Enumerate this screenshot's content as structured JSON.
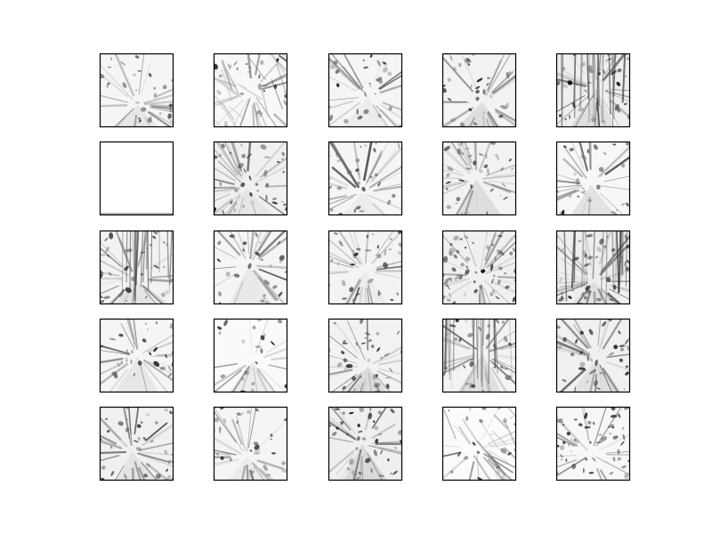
{
  "figure": {
    "kind": "feature-map-grid",
    "rows": 5,
    "columns": 5,
    "tile_count": 25,
    "colormap": "grayscale",
    "background": "#ffffff",
    "frame_color": "#000000",
    "blank_tiles": [
      5
    ],
    "tiles": [
      {
        "density": 0.35,
        "motif": "radial"
      },
      {
        "density": 0.25,
        "motif": "diagonal"
      },
      {
        "density": 0.35,
        "motif": "radial"
      },
      {
        "density": 0.45,
        "motif": "radial"
      },
      {
        "density": 0.6,
        "motif": "corridor"
      },
      {
        "density": 0.0,
        "motif": "blank"
      },
      {
        "density": 0.55,
        "motif": "radial"
      },
      {
        "density": 0.35,
        "motif": "radial"
      },
      {
        "density": 0.5,
        "motif": "radial"
      },
      {
        "density": 0.3,
        "motif": "radial"
      },
      {
        "density": 0.5,
        "motif": "corridor"
      },
      {
        "density": 0.35,
        "motif": "radial"
      },
      {
        "density": 0.45,
        "motif": "radial"
      },
      {
        "density": 0.55,
        "motif": "scattered"
      },
      {
        "density": 0.65,
        "motif": "corridor"
      },
      {
        "density": 0.35,
        "motif": "radial"
      },
      {
        "density": 0.2,
        "motif": "radial"
      },
      {
        "density": 0.5,
        "motif": "radial"
      },
      {
        "density": 0.45,
        "motif": "corridor"
      },
      {
        "density": 0.55,
        "motif": "radial"
      },
      {
        "density": 0.55,
        "motif": "radial"
      },
      {
        "density": 0.35,
        "motif": "radial"
      },
      {
        "density": 0.6,
        "motif": "radial"
      },
      {
        "density": 0.15,
        "motif": "diagonal"
      },
      {
        "density": 0.3,
        "motif": "scattered"
      }
    ]
  }
}
